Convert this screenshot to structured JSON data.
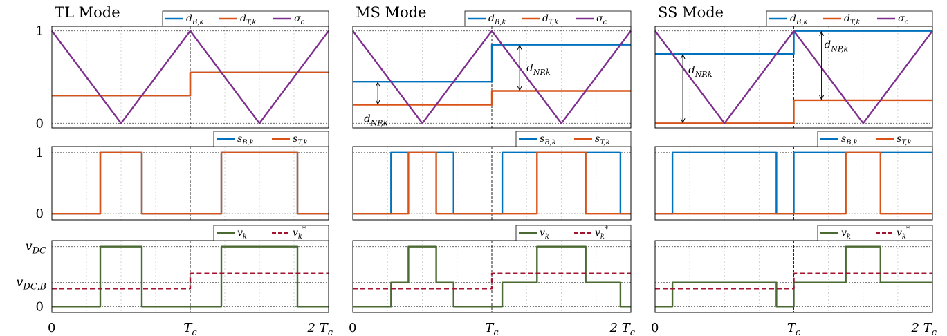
{
  "chart_data": [
    {
      "type": "line",
      "title": "TL Mode",
      "row": "duty",
      "ylim": [
        -0.05,
        1.05
      ],
      "yticks": [
        {
          "value": 1,
          "label": "1"
        },
        {
          "value": 0,
          "label": "0"
        }
      ],
      "series": [
        {
          "name": "d_B,k",
          "color": "#0072bd",
          "style": "solid",
          "x": [
            0,
            1,
            1,
            2
          ],
          "y": [
            0.3,
            0.3,
            0.55,
            0.55
          ]
        },
        {
          "name": "d_T,k",
          "color": "#d95319",
          "style": "solid",
          "x": [
            0,
            1,
            1,
            2
          ],
          "y": [
            0.3,
            0.3,
            0.55,
            0.55
          ]
        },
        {
          "name": "σ_c",
          "color": "#7e2f8e",
          "style": "solid",
          "x": [
            0,
            0.5,
            1,
            1.5,
            2
          ],
          "y": [
            1,
            0,
            1,
            0,
            1
          ]
        }
      ],
      "annotations": []
    },
    {
      "type": "line",
      "title": "MS Mode",
      "row": "duty",
      "ylim": [
        -0.05,
        1.05
      ],
      "yticks": [],
      "series": [
        {
          "name": "d_B,k",
          "color": "#0072bd",
          "style": "solid",
          "x": [
            0,
            1,
            1,
            2
          ],
          "y": [
            0.45,
            0.45,
            0.85,
            0.85
          ]
        },
        {
          "name": "d_T,k",
          "color": "#d95319",
          "style": "solid",
          "x": [
            0,
            1,
            1,
            2
          ],
          "y": [
            0.2,
            0.2,
            0.35,
            0.35
          ]
        },
        {
          "name": "σ_c",
          "color": "#7e2f8e",
          "style": "solid",
          "x": [
            0,
            0.5,
            1,
            1.5,
            2
          ],
          "y": [
            1,
            0,
            1,
            0,
            1
          ]
        }
      ],
      "annotations": [
        {
          "text": "d_NP,k",
          "x": 0.18,
          "y1": 0.2,
          "y2": 0.45,
          "label_x": 0.08,
          "label_y": 0.05
        },
        {
          "text": "d_NP,k",
          "x": 1.2,
          "y1": 0.35,
          "y2": 0.85,
          "label_x": 1.25,
          "label_y": 0.6
        }
      ]
    },
    {
      "type": "line",
      "title": "SS Mode",
      "row": "duty",
      "ylim": [
        -0.05,
        1.05
      ],
      "yticks": [],
      "series": [
        {
          "name": "d_B,k",
          "color": "#0072bd",
          "style": "solid",
          "x": [
            0,
            1,
            1,
            2
          ],
          "y": [
            0.75,
            0.75,
            1.0,
            1.0
          ]
        },
        {
          "name": "d_T,k",
          "color": "#d95319",
          "style": "solid",
          "x": [
            0,
            1,
            1,
            2
          ],
          "y": [
            0,
            0,
            0.25,
            0.25
          ]
        },
        {
          "name": "σ_c",
          "color": "#7e2f8e",
          "style": "solid",
          "x": [
            0,
            0.5,
            1,
            1.5,
            2
          ],
          "y": [
            1,
            0,
            1,
            0,
            1
          ]
        }
      ],
      "annotations": [
        {
          "text": "d_NP,k",
          "x": 0.2,
          "y1": 0,
          "y2": 0.75,
          "label_x": 0.24,
          "label_y": 0.58
        },
        {
          "text": "d_NP,k",
          "x": 1.2,
          "y1": 0.25,
          "y2": 1.0,
          "label_x": 1.22,
          "label_y": 0.85
        }
      ]
    },
    {
      "type": "line",
      "row": "switch",
      "ylim": [
        -0.1,
        1.1
      ],
      "yticks": [
        {
          "value": 1,
          "label": "1"
        },
        {
          "value": 0,
          "label": "0"
        }
      ],
      "series": [
        {
          "name": "s_B,k",
          "color": "#0072bd",
          "style": "solid",
          "x": [
            0,
            0.35,
            0.35,
            0.65,
            0.65,
            1.225,
            1.225,
            1.775,
            1.775,
            2
          ],
          "y": [
            0,
            0,
            1,
            1,
            0,
            0,
            1,
            1,
            0,
            0
          ]
        },
        {
          "name": "s_T,k",
          "color": "#d95319",
          "style": "solid",
          "x": [
            0,
            0.35,
            0.35,
            0.65,
            0.65,
            1.225,
            1.225,
            1.775,
            1.775,
            2
          ],
          "y": [
            0,
            0,
            1,
            1,
            0,
            0,
            1,
            1,
            0,
            0
          ]
        }
      ]
    },
    {
      "type": "line",
      "row": "switch",
      "ylim": [
        -0.1,
        1.1
      ],
      "yticks": [],
      "series": [
        {
          "name": "s_B,k",
          "color": "#0072bd",
          "style": "solid",
          "x": [
            0,
            0.275,
            0.275,
            0.725,
            0.725,
            1.075,
            1.075,
            1.925,
            1.925,
            2
          ],
          "y": [
            0,
            0,
            1,
            1,
            0,
            0,
            1,
            1,
            0,
            0
          ]
        },
        {
          "name": "s_T,k",
          "color": "#d95319",
          "style": "solid",
          "x": [
            0,
            0.4,
            0.4,
            0.6,
            0.6,
            1.325,
            1.325,
            1.675,
            1.675,
            2
          ],
          "y": [
            0,
            0,
            1,
            1,
            0,
            0,
            1,
            1,
            0,
            0
          ]
        }
      ]
    },
    {
      "type": "line",
      "row": "switch",
      "ylim": [
        -0.1,
        1.1
      ],
      "yticks": [],
      "series": [
        {
          "name": "s_B,k",
          "color": "#0072bd",
          "style": "solid",
          "x": [
            0,
            0.125,
            0.125,
            0.875,
            0.875,
            1.0,
            1.0,
            2
          ],
          "y": [
            0,
            0,
            1,
            1,
            0,
            0,
            1,
            1
          ]
        },
        {
          "name": "s_T,k",
          "color": "#d95319",
          "style": "solid",
          "x": [
            0,
            1.375,
            1.375,
            1.625,
            1.625,
            2
          ],
          "y": [
            0,
            0,
            1,
            1,
            0,
            0
          ]
        }
      ]
    },
    {
      "type": "line",
      "row": "voltage",
      "ylim": [
        -0.1,
        1.1
      ],
      "yticks": [
        {
          "value": 1,
          "label": "v_DC"
        },
        {
          "value": 0.4,
          "label": "v_DC,B"
        },
        {
          "value": 0,
          "label": "0"
        }
      ],
      "xticks": [
        {
          "value": 0,
          "label": "0"
        },
        {
          "value": 1,
          "label": "T_c"
        },
        {
          "value": 2,
          "label": "2 T_c"
        }
      ],
      "series": [
        {
          "name": "v_k",
          "color": "#4a6a32",
          "style": "solid",
          "x": [
            0,
            0.35,
            0.35,
            0.65,
            0.65,
            1.225,
            1.225,
            1.775,
            1.775,
            2
          ],
          "y": [
            0,
            0,
            1,
            1,
            0,
            0,
            1,
            1,
            0,
            0
          ]
        },
        {
          "name": "v_k^*",
          "color": "#a2142f",
          "style": "dashed",
          "x": [
            0,
            1,
            1,
            2
          ],
          "y": [
            0.3,
            0.3,
            0.55,
            0.55
          ]
        }
      ]
    },
    {
      "type": "line",
      "row": "voltage",
      "ylim": [
        -0.1,
        1.1
      ],
      "yticks": [],
      "xticks": [
        {
          "value": 0,
          "label": "0"
        },
        {
          "value": 1,
          "label": "T_c"
        },
        {
          "value": 2,
          "label": "2 T_c"
        }
      ],
      "series": [
        {
          "name": "v_k",
          "color": "#4a6a32",
          "style": "solid",
          "x": [
            0,
            0.275,
            0.275,
            0.4,
            0.4,
            0.6,
            0.6,
            0.725,
            0.725,
            1.075,
            1.075,
            1.325,
            1.325,
            1.675,
            1.675,
            1.925,
            1.925,
            2
          ],
          "y": [
            0,
            0,
            0.4,
            0.4,
            1,
            1,
            0.4,
            0.4,
            0,
            0,
            0.4,
            0.4,
            1,
            1,
            0.4,
            0.4,
            0,
            0
          ]
        },
        {
          "name": "v_k^*",
          "color": "#a2142f",
          "style": "dashed",
          "x": [
            0,
            1,
            1,
            2
          ],
          "y": [
            0.3,
            0.3,
            0.55,
            0.55
          ]
        }
      ]
    },
    {
      "type": "line",
      "row": "voltage",
      "ylim": [
        -0.1,
        1.1
      ],
      "yticks": [],
      "xticks": [
        {
          "value": 0,
          "label": "0"
        },
        {
          "value": 1,
          "label": "T_c"
        },
        {
          "value": 2,
          "label": "2 T_c"
        }
      ],
      "series": [
        {
          "name": "v_k",
          "color": "#4a6a32",
          "style": "solid",
          "x": [
            0,
            0.125,
            0.125,
            0.875,
            0.875,
            1.0,
            1.0,
            1.375,
            1.375,
            1.625,
            1.625,
            2
          ],
          "y": [
            0,
            0,
            0.4,
            0.4,
            0,
            0,
            0.4,
            0.4,
            1,
            1,
            0.4,
            0.4
          ]
        },
        {
          "name": "v_k^*",
          "color": "#a2142f",
          "style": "dashed",
          "x": [
            0,
            1,
            1,
            2
          ],
          "y": [
            0.3,
            0.3,
            0.55,
            0.55
          ]
        }
      ]
    }
  ]
}
